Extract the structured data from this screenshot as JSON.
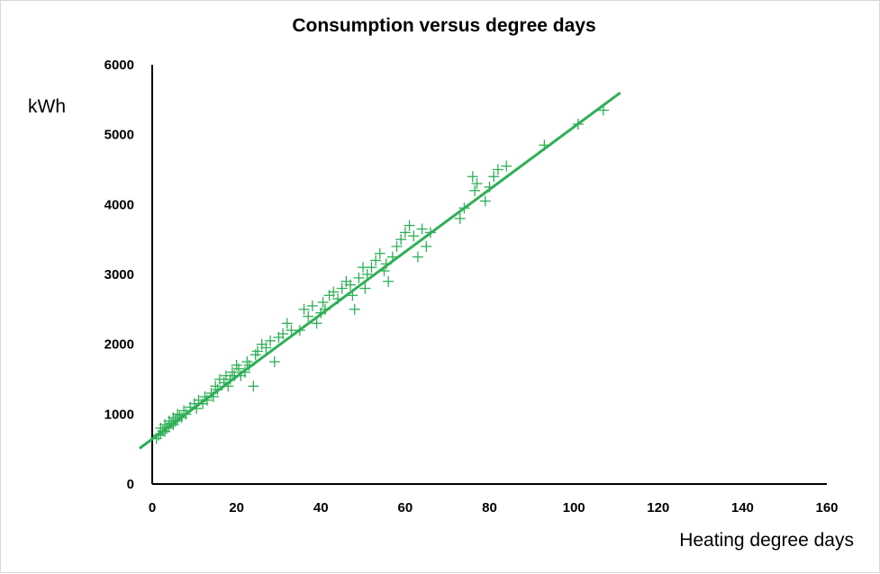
{
  "chart_data": {
    "type": "scatter",
    "title": "Consumption versus degree days",
    "xlabel": "Heating degree days",
    "ylabel": "kWh",
    "xlim": [
      0,
      160
    ],
    "ylim": [
      0,
      6000
    ],
    "xticks": [
      0,
      20,
      40,
      60,
      80,
      100,
      120,
      140,
      160
    ],
    "yticks": [
      0,
      1000,
      2000,
      3000,
      4000,
      5000,
      6000
    ],
    "grid": false,
    "legend": "none",
    "marker": "plus",
    "color": "#2eaf56",
    "series": [
      {
        "x": [
          1,
          1.5,
          2,
          2,
          2.5,
          3,
          3,
          3.5,
          4,
          4,
          4.5,
          5,
          5,
          5.5,
          6,
          6,
          6.5,
          7,
          7.5,
          8,
          9,
          10,
          10.5,
          11,
          12,
          12.5,
          13,
          14,
          14.5,
          15,
          15.5,
          16,
          17,
          17.5,
          18,
          18.5,
          19,
          19.5,
          20,
          20.5,
          21,
          22,
          22.5,
          23,
          24,
          24.5,
          25,
          26,
          27,
          28,
          29,
          30,
          31,
          32,
          33,
          35,
          36,
          37,
          38,
          39,
          40,
          40.5,
          41,
          42,
          43,
          44,
          45,
          46,
          47,
          47.5,
          48,
          49,
          50,
          50.5,
          51,
          52,
          53,
          54,
          55,
          55.5,
          56,
          57,
          58,
          59,
          60,
          61,
          62,
          63,
          64,
          65,
          66,
          73,
          74,
          76,
          76.5,
          77,
          79,
          80,
          81,
          82,
          84,
          93,
          101,
          107
        ],
        "y": [
          650,
          700,
          720,
          800,
          760,
          750,
          850,
          800,
          820,
          900,
          870,
          850,
          950,
          900,
          920,
          1000,
          980,
          950,
          1050,
          1000,
          1100,
          1150,
          1080,
          1200,
          1150,
          1250,
          1200,
          1300,
          1250,
          1400,
          1350,
          1500,
          1450,
          1550,
          1400,
          1500,
          1600,
          1550,
          1700,
          1650,
          1550,
          1600,
          1750,
          1700,
          1400,
          1850,
          1900,
          2000,
          1950,
          2050,
          1750,
          2100,
          2150,
          2300,
          2200,
          2200,
          2500,
          2400,
          2550,
          2300,
          2450,
          2600,
          2500,
          2700,
          2750,
          2650,
          2800,
          2900,
          2850,
          2700,
          2500,
          2950,
          3100,
          2800,
          3000,
          3100,
          3200,
          3300,
          3050,
          3150,
          2900,
          3250,
          3400,
          3500,
          3600,
          3700,
          3550,
          3250,
          3650,
          3400,
          3600,
          3800,
          3950,
          4400,
          4200,
          4300,
          4050,
          4250,
          4400,
          4500,
          4550,
          4850,
          5150,
          5350
        ]
      }
    ],
    "trendline": {
      "x": [
        -3,
        111
      ],
      "y": [
        510,
        5600
      ],
      "color": "#2eaf56"
    }
  }
}
